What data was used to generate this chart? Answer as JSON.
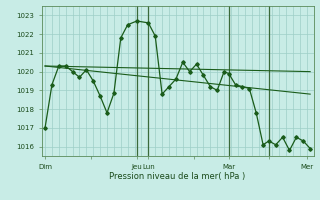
{
  "bg_color": "#c8ece6",
  "grid_color": "#9ecfc7",
  "line_color": "#1a5c1a",
  "marker_color": "#1a5c1a",
  "ylabel_ticks": [
    1016,
    1017,
    1018,
    1019,
    1020,
    1021,
    1022,
    1023
  ],
  "ylim": [
    1015.5,
    1023.5
  ],
  "xlabel": "Pression niveau de la mer( hPa )",
  "xtick_labels": [
    "Dim",
    "",
    "Jeu",
    "Lun",
    "",
    "Mar",
    "",
    "Mer"
  ],
  "xtick_positions": [
    0,
    40,
    80,
    90,
    130,
    160,
    195,
    228
  ],
  "vlines_dark": [
    80,
    90,
    160,
    195
  ],
  "series1": [
    [
      0,
      1017.0
    ],
    [
      6,
      1019.3
    ],
    [
      12,
      1020.3
    ],
    [
      18,
      1020.3
    ],
    [
      24,
      1020.0
    ],
    [
      30,
      1019.7
    ],
    [
      36,
      1020.1
    ],
    [
      42,
      1019.5
    ],
    [
      48,
      1018.7
    ],
    [
      54,
      1017.8
    ],
    [
      60,
      1018.85
    ],
    [
      66,
      1021.8
    ],
    [
      72,
      1022.5
    ],
    [
      80,
      1022.7
    ],
    [
      90,
      1022.6
    ],
    [
      96,
      1021.9
    ],
    [
      102,
      1018.8
    ],
    [
      108,
      1019.2
    ],
    [
      114,
      1019.6
    ],
    [
      120,
      1020.5
    ],
    [
      126,
      1020.0
    ],
    [
      132,
      1020.4
    ],
    [
      138,
      1019.8
    ],
    [
      144,
      1019.2
    ],
    [
      150,
      1019.0
    ],
    [
      156,
      1020.0
    ],
    [
      160,
      1019.9
    ],
    [
      166,
      1019.3
    ],
    [
      172,
      1019.2
    ],
    [
      178,
      1019.1
    ],
    [
      184,
      1017.8
    ],
    [
      190,
      1016.1
    ],
    [
      195,
      1016.3
    ],
    [
      201,
      1016.1
    ],
    [
      207,
      1016.5
    ],
    [
      213,
      1015.8
    ],
    [
      219,
      1016.5
    ],
    [
      225,
      1016.3
    ],
    [
      231,
      1015.9
    ]
  ],
  "series2": [
    [
      0,
      1020.3
    ],
    [
      231,
      1020.0
    ]
  ],
  "series3": [
    [
      0,
      1020.3
    ],
    [
      231,
      1018.8
    ]
  ],
  "xlim": [
    -3,
    234
  ]
}
